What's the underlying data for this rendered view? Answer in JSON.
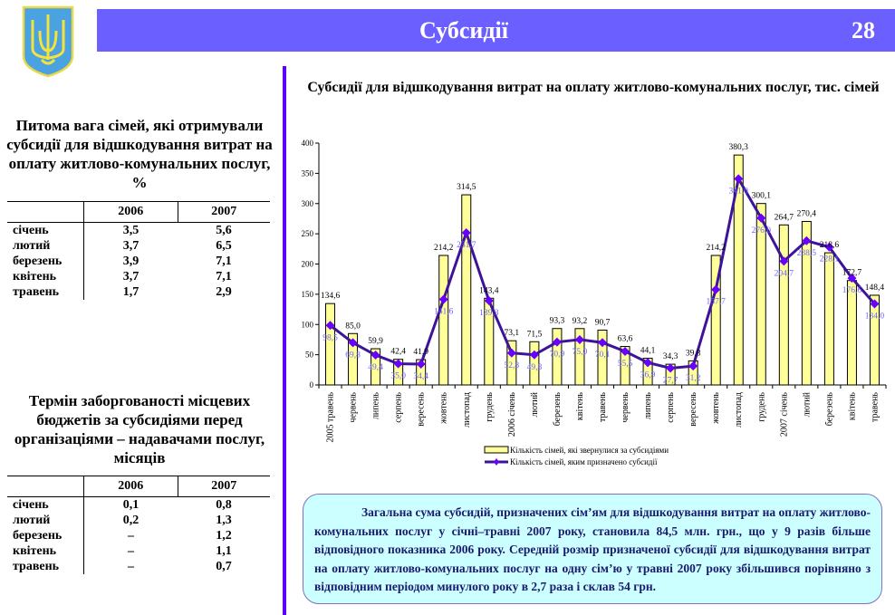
{
  "header": {
    "title": "Субсидії",
    "page_number": "28",
    "bar_color": "#6b5fff",
    "divider_color": "#5a00ff"
  },
  "crest": {
    "icon": "ukraine-trident-coat-of-arms-icon"
  },
  "table1": {
    "title": "Питома вага сімей, які отримували субсидії для відшкодування витрат на оплату житлово-комунальних послуг, %",
    "columns": [
      "",
      "2006",
      "2007"
    ],
    "rows": [
      [
        "січень",
        "3,5",
        "5,6"
      ],
      [
        "лютий",
        "3,7",
        "6,5"
      ],
      [
        "березень",
        "3,9",
        "7,1"
      ],
      [
        "квітень",
        "3,7",
        "7,1"
      ],
      [
        "травень",
        "1,7",
        "2,9"
      ]
    ]
  },
  "table2": {
    "title": "Термін заборгованості місцевих бюджетів за субсидіями перед організаціями – надавачами послуг, місяців",
    "columns": [
      "",
      "2006",
      "2007"
    ],
    "rows": [
      [
        "січень",
        "0,1",
        "0,8"
      ],
      [
        "лютий",
        "0,2",
        "1,3"
      ],
      [
        "березень",
        "–",
        "1,2"
      ],
      [
        "квітень",
        "–",
        "1,1"
      ],
      [
        "травень",
        "–",
        "0,7"
      ]
    ]
  },
  "chart_data": {
    "type": "bar+line",
    "title": "Субсидії для відшкодування витрат на оплату житлово-комунальних послуг, тис. сімей",
    "ylim": [
      0,
      400
    ],
    "yticks": [
      "0",
      "50",
      "100",
      "150",
      "200",
      "250",
      "300",
      "350",
      "400"
    ],
    "grid": false,
    "legend": "bottom",
    "categories": [
      "2005 травень",
      "червень",
      "липень",
      "серпень",
      "вересень",
      "жовтень",
      "листопад",
      "грудень",
      "2006 січень",
      "лютий",
      "березень",
      "квітень",
      "травень",
      "червень",
      "липень",
      "серпень",
      "вересень",
      "жовтень",
      "листопад",
      "грудень",
      "2007 січень",
      "лютий",
      "березень",
      "квітень",
      "травень"
    ],
    "series": [
      {
        "name": "Кількість сімей, які звернулися за субсидіями",
        "type": "bar",
        "color": "#ffff99",
        "values": [
          134.6,
          85.0,
          59.9,
          42.4,
          41.9,
          214.2,
          314.5,
          143.4,
          73.1,
          71.5,
          93.3,
          93.2,
          90.7,
          63.6,
          44.1,
          34.3,
          39.8,
          214.2,
          380.3,
          300.1,
          264.7,
          270.4,
          218.6,
          172.7,
          148.4
        ],
        "labels": [
          "134,6",
          "85,0",
          "59,9",
          "42,4",
          "41,9",
          "214,2",
          "314,5",
          "143,4",
          "73,1",
          "71,5",
          "93,3",
          "93,2",
          "90,7",
          "63,6",
          "44,1",
          "34,3",
          "39,8",
          "214,2",
          "380,3",
          "300,1",
          "264,7",
          "270,4",
          "218,6",
          "172,7",
          "148,4"
        ]
      },
      {
        "name": "Кількість сімей, яким призначено субсидії",
        "type": "line",
        "color": "#3d1399",
        "marker_color": "#6a00ff",
        "values": [
          98.5,
          69.8,
          49.4,
          35.0,
          34.4,
          141.6,
          251.7,
          139.3,
          52.8,
          49.8,
          70.9,
          75.0,
          70.1,
          55.5,
          36.9,
          27.7,
          31.2,
          157.7,
          341.0,
          276.0,
          204.7,
          238.5,
          228.1,
          176.6,
          134.0
        ],
        "labels": [
          "98,5",
          "69,8",
          "49,4",
          "35,0",
          "34,4",
          "141,6",
          "251,7",
          "139,3",
          "52,8",
          "49,8",
          "70,9",
          "75,0",
          "70,1",
          "55,5",
          "36,9",
          "27,7",
          "31,2",
          "157,7",
          "341,0",
          "276,0",
          "204,7",
          "238,5",
          "228,1",
          "176,6",
          "134,0"
        ]
      }
    ]
  },
  "note": "Загальна сума субсидій, призначених сім’ям для відшкодування витрат на оплату житлово-комунальних послуг у січні–травні 2007 року, становила 84,5 млн. грн., що у 9 разів більше відповідного показника 2006 року. Середній розмір призначеної субсидії для відшкодування витрат на оплату житлово-комунальних послуг на одну сім’ю у травні 2007 року збільшився  порівняно з відповідним періодом минулого року в 2,7 раза і склав 54 грн."
}
